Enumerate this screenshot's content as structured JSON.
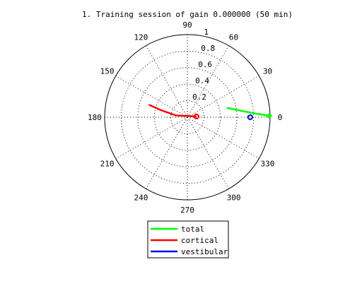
{
  "chart_data": {
    "type": "polar-line",
    "title": "1. Training session of gain 0.000000 (50 min)",
    "r_max": 1,
    "radial_ticks": [
      {
        "value": 0.2,
        "label": "0.2"
      },
      {
        "value": 0.4,
        "label": "0.4"
      },
      {
        "value": 0.6,
        "label": "0.6"
      },
      {
        "value": 0.8,
        "label": "0.8"
      },
      {
        "value": 1.0,
        "label": "1"
      }
    ],
    "angle_ticks": [
      {
        "deg": 0,
        "label": "0"
      },
      {
        "deg": 30,
        "label": "30"
      },
      {
        "deg": 60,
        "label": "60"
      },
      {
        "deg": 90,
        "label": "90"
      },
      {
        "deg": 120,
        "label": "120"
      },
      {
        "deg": 150,
        "label": "150"
      },
      {
        "deg": 180,
        "label": "180"
      },
      {
        "deg": 210,
        "label": "210"
      },
      {
        "deg": 240,
        "label": "240"
      },
      {
        "deg": 270,
        "label": "270"
      },
      {
        "deg": 300,
        "label": "300"
      },
      {
        "deg": 330,
        "label": "330"
      }
    ],
    "grid": true,
    "legend_position": "bottom-center",
    "series": [
      {
        "name": "total",
        "color": "#00ff00",
        "end_marker": "diamond",
        "points": [
          [
            0.49,
            13.5
          ],
          [
            0.65,
            7
          ],
          [
            0.8,
            3.5
          ],
          [
            0.99,
            1
          ]
        ]
      },
      {
        "name": "cortical",
        "color": "#ff0000",
        "end_marker": "circle",
        "points": [
          [
            0.49,
            162
          ],
          [
            0.33,
            165
          ],
          [
            0.14,
            171
          ],
          [
            0.11,
            5
          ]
        ]
      },
      {
        "name": "vestibular",
        "color": "#0000ff",
        "end_marker": "circle",
        "points": [
          [
            0.76,
            0
          ]
        ]
      }
    ]
  }
}
